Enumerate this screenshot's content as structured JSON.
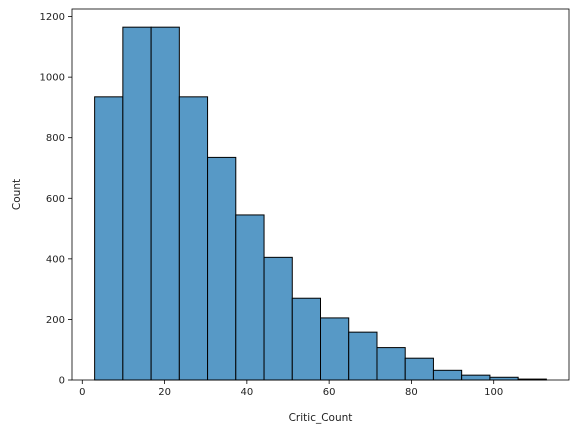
{
  "chart_data": {
    "type": "bar",
    "title": "",
    "xlabel": "Critic_Count",
    "ylabel": "Count",
    "bin_edges": [
      3,
      9.86,
      16.73,
      23.59,
      30.45,
      37.31,
      44.18,
      51.04,
      57.9,
      64.76,
      71.63,
      78.49,
      85.35,
      92.21,
      99.08,
      105.94,
      112.8
    ],
    "values": [
      935,
      1165,
      1165,
      935,
      735,
      545,
      405,
      270,
      205,
      158,
      107,
      72,
      32,
      16,
      9,
      3
    ],
    "xlim": [
      -2.5,
      118.3
    ],
    "ylim": [
      0,
      1225
    ],
    "xticks": [
      0,
      20,
      40,
      60,
      80,
      100
    ],
    "yticks": [
      0,
      200,
      400,
      600,
      800,
      1000,
      1200
    ],
    "grid": false,
    "bar_color": "#5799c6",
    "edge_color": "#000000"
  }
}
